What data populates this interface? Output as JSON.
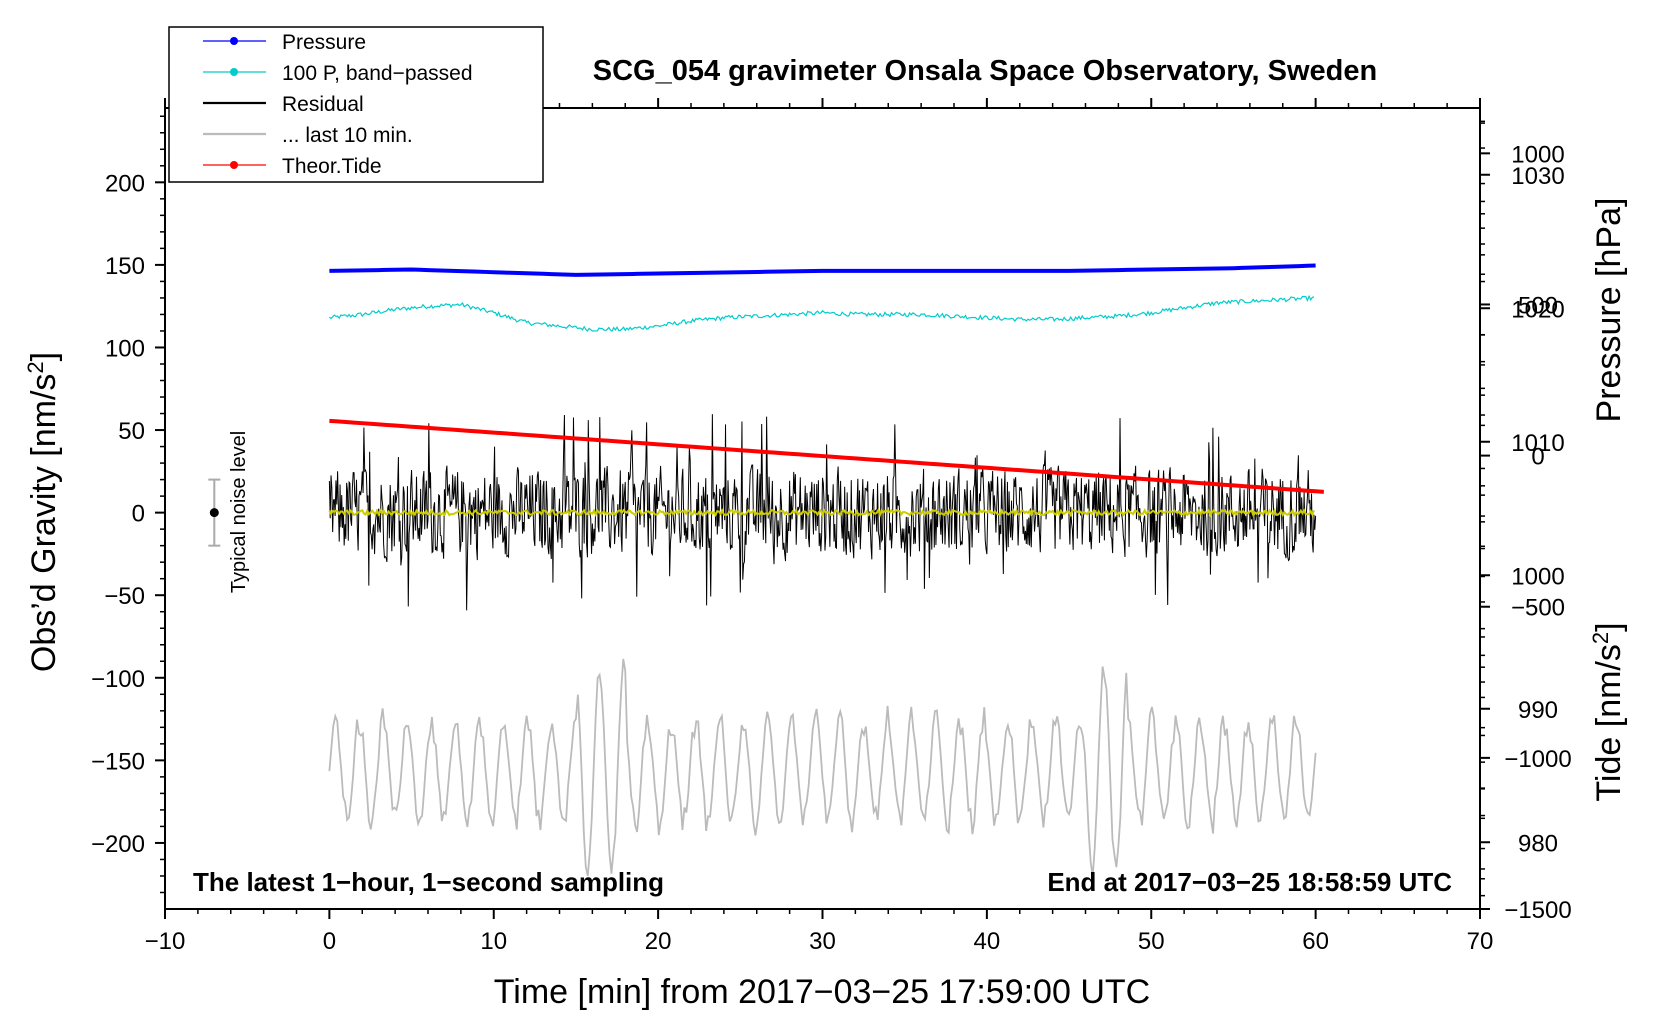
{
  "chart_data": {
    "type": "line",
    "title": "SCG_054 gravimeter Onsala Space Observatory, Sweden",
    "xlabel": "Time [min] from 2017−03−25 17:59:00 UTC",
    "ylabel_left": "Obs’d Gravity [nm/s",
    "ylabel_left_sup": "2",
    "ylabel_left_close": "]",
    "ylabel_right_pressure": "Pressure [hPa]",
    "ylabel_right_tide": "Tide [nm/s",
    "ylabel_right_tide_sup": "2",
    "ylabel_right_tide_close": "]",
    "xlim": [
      -10,
      70
    ],
    "ylim": [
      -240,
      245
    ],
    "pressure_axis": {
      "lim": [
        975,
        1035
      ],
      "ticks": [
        980,
        990,
        1000,
        1010,
        1020,
        1030
      ]
    },
    "tide_axis": {
      "lim": [
        -1500,
        1150
      ],
      "ticks": [
        -1500,
        -1000,
        -500,
        0,
        500,
        1000
      ]
    },
    "x_ticks": [
      -10,
      0,
      10,
      20,
      30,
      40,
      50,
      60,
      70
    ],
    "x_tick_labels": [
      "−10",
      "0",
      "10",
      "20",
      "30",
      "40",
      "50",
      "60",
      "70"
    ],
    "y_ticks": [
      -200,
      -150,
      -100,
      -50,
      0,
      50,
      100,
      150,
      200
    ],
    "y_tick_labels": [
      "−200",
      "−150",
      "−100",
      "−50",
      "0",
      "50",
      "100",
      "150",
      "200"
    ],
    "pressure_tick_labels": [
      "980",
      "990",
      "1000",
      "1010",
      "1020",
      "1030"
    ],
    "tide_tick_labels": [
      "−1500",
      "−1000",
      "−500",
      "0",
      "500",
      "1000"
    ],
    "legend": [
      {
        "label": "Pressure",
        "color": "#0000ff",
        "marker": true
      },
      {
        "label": "100 P, band−passed",
        "color": "#00cccc",
        "marker": true
      },
      {
        "label": "Residual",
        "color": "#000000",
        "marker": false
      },
      {
        "label": "... last 10 min.",
        "color": "#bbbbbb",
        "marker": false
      },
      {
        "label": "Theor.Tide",
        "color": "#ff0000",
        "marker": true
      }
    ],
    "annotation_left": "The latest 1−hour, 1−second sampling",
    "annotation_right": "End at 2017−03−25 18:58:59 UTC",
    "noise_label": "Typical noise level",
    "noise_level": {
      "x": -7,
      "center": 0,
      "half_range": 20
    },
    "series": [
      {
        "name": "Pressure",
        "axis": "pressure",
        "color": "#0000ff",
        "x": [
          0,
          5,
          10,
          15,
          20,
          25,
          30,
          35,
          40,
          45,
          50,
          55,
          60
        ],
        "values": [
          1022.8,
          1022.9,
          1022.7,
          1022.5,
          1022.6,
          1022.7,
          1022.8,
          1022.8,
          1022.8,
          1022.8,
          1022.9,
          1023.0,
          1023.2
        ]
      },
      {
        "name": "100 P, band-passed",
        "axis": "gravity",
        "color": "#00cccc",
        "x": [
          0,
          2,
          4,
          6,
          8,
          10,
          12,
          14,
          16,
          18,
          20,
          22,
          24,
          26,
          28,
          30,
          32,
          34,
          36,
          38,
          40,
          42,
          44,
          46,
          48,
          50,
          52,
          54,
          56,
          58,
          60
        ],
        "values": [
          118,
          120,
          123,
          125,
          126,
          121,
          115,
          113,
          111,
          111,
          113,
          116,
          118,
          119,
          120,
          121,
          120,
          120,
          120,
          119,
          118,
          117,
          117,
          118,
          119,
          121,
          124,
          127,
          128,
          129,
          130
        ]
      },
      {
        "name": "Residual",
        "axis": "gravity",
        "color": "#000000",
        "x": [
          0,
          60
        ],
        "range": [
          -70,
          67
        ]
      },
      {
        "name": "... last 10 min.",
        "axis": "gravity",
        "color": "#bbbbbb",
        "x": [
          0,
          60
        ],
        "range": [
          -220,
          -83
        ]
      },
      {
        "name": "Theor.Tide",
        "axis": "tide",
        "color": "#ff0000",
        "x": [
          0,
          60.5
        ],
        "values": [
          115,
          -120
        ]
      }
    ]
  }
}
